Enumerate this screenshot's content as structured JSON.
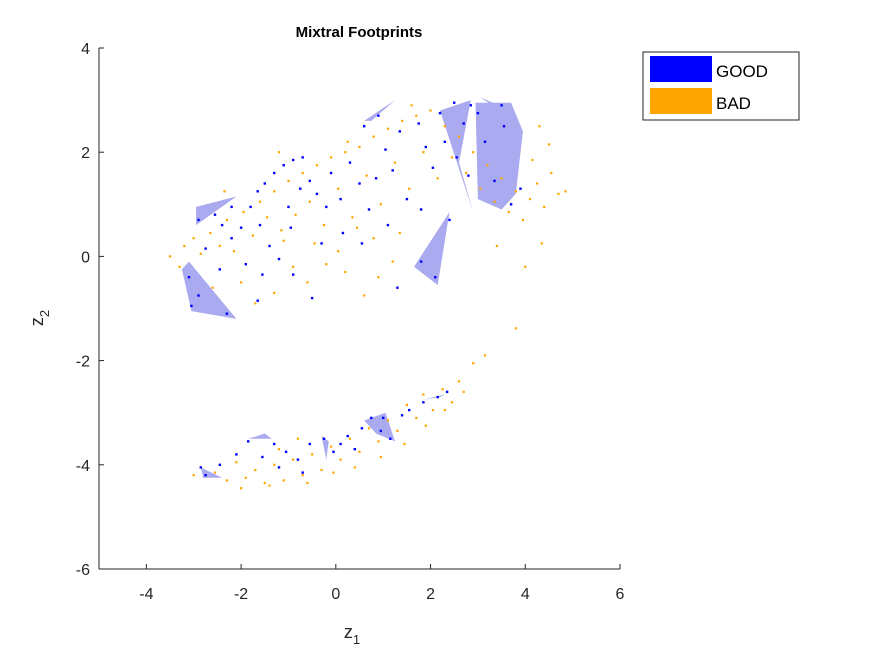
{
  "chart_data": {
    "type": "scatter",
    "title": "Mixtral Footprints",
    "xlabel": {
      "base": "z",
      "sub": "1"
    },
    "ylabel": {
      "base": "z",
      "sub": "2"
    },
    "xlim": [
      -5,
      6
    ],
    "ylim": [
      -6,
      4
    ],
    "xticks": [
      -4,
      -2,
      0,
      2,
      4,
      6
    ],
    "yticks": [
      -6,
      -4,
      -2,
      0,
      2,
      4
    ],
    "xtick_labels": [
      "-4",
      "-2",
      "0",
      "2",
      "4",
      "6"
    ],
    "ytick_labels": [
      "-6",
      "-4",
      "-2",
      "0",
      "2",
      "4"
    ],
    "grid": false,
    "legend_position": "top-right outside",
    "colors": {
      "GOOD": "#0000ff",
      "BAD": "#ffa500",
      "footprint": "#aaaaf0"
    },
    "legend": [
      {
        "label": "GOOD",
        "color": "#0000ff"
      },
      {
        "label": "BAD",
        "color": "#ffa500"
      }
    ],
    "footprints": [
      [
        [
          -2.95,
          0.6
        ],
        [
          -2.1,
          1.15
        ],
        [
          -2.95,
          0.95
        ]
      ],
      [
        [
          -3.25,
          -0.25
        ],
        [
          -3.1,
          -0.1
        ],
        [
          -2.1,
          -1.2
        ],
        [
          -3.05,
          -1.05
        ]
      ],
      [
        [
          0.6,
          2.6
        ],
        [
          1.25,
          3.0
        ],
        [
          0.75,
          2.6
        ]
      ],
      [
        [
          2.2,
          2.8
        ],
        [
          2.85,
          3.0
        ],
        [
          2.6,
          1.8
        ],
        [
          2.9,
          0.85
        ]
      ],
      [
        [
          1.65,
          -0.2
        ],
        [
          2.4,
          0.85
        ],
        [
          2.15,
          -0.55
        ]
      ],
      [
        [
          2.95,
          2.95
        ],
        [
          3.7,
          2.95
        ],
        [
          3.95,
          2.4
        ],
        [
          3.8,
          1.2
        ],
        [
          3.5,
          0.9
        ],
        [
          3.0,
          1.1
        ]
      ],
      [
        [
          3.05,
          3.05
        ],
        [
          3.45,
          2.9
        ],
        [
          3.9,
          2.55
        ]
      ],
      [
        [
          1.85,
          -2.75
        ],
        [
          2.3,
          -2.65
        ],
        [
          2.2,
          -2.7
        ]
      ],
      [
        [
          0.6,
          -3.15
        ],
        [
          1.05,
          -3.0
        ],
        [
          1.25,
          -3.55
        ],
        [
          0.85,
          -3.4
        ]
      ],
      [
        [
          -0.3,
          -3.45
        ],
        [
          -0.15,
          -3.55
        ],
        [
          -0.2,
          -3.9
        ]
      ],
      [
        [
          -1.85,
          -3.5
        ],
        [
          -1.5,
          -3.4
        ],
        [
          -1.35,
          -3.5
        ]
      ],
      [
        [
          -2.85,
          -4.05
        ],
        [
          -2.4,
          -4.25
        ],
        [
          -2.8,
          -4.25
        ]
      ]
    ],
    "series": [
      {
        "name": "GOOD",
        "points": [
          [
            -2.9,
            0.7
          ],
          [
            -2.55,
            0.8
          ],
          [
            -2.4,
            0.6
          ],
          [
            -2.2,
            0.35
          ],
          [
            -2.0,
            0.55
          ],
          [
            -1.8,
            0.95
          ],
          [
            -1.65,
            1.25
          ],
          [
            -1.5,
            1.4
          ],
          [
            -1.3,
            1.6
          ],
          [
            -1.1,
            1.75
          ],
          [
            -0.9,
            1.85
          ],
          [
            -0.7,
            1.9
          ],
          [
            -0.55,
            1.45
          ],
          [
            -0.4,
            1.2
          ],
          [
            -0.2,
            0.95
          ],
          [
            -0.1,
            1.6
          ],
          [
            0.1,
            1.1
          ],
          [
            0.3,
            1.8
          ],
          [
            0.5,
            1.4
          ],
          [
            0.7,
            0.9
          ],
          [
            0.85,
            1.5
          ],
          [
            1.05,
            2.05
          ],
          [
            1.2,
            1.65
          ],
          [
            1.35,
            2.4
          ],
          [
            1.5,
            1.1
          ],
          [
            1.75,
            2.55
          ],
          [
            1.9,
            2.1
          ],
          [
            2.05,
            1.7
          ],
          [
            2.3,
            2.2
          ],
          [
            2.55,
            1.9
          ],
          [
            2.7,
            2.55
          ],
          [
            2.8,
            1.55
          ],
          [
            3.0,
            2.75
          ],
          [
            3.15,
            2.2
          ],
          [
            3.35,
            1.45
          ],
          [
            3.55,
            2.5
          ],
          [
            3.7,
            1.0
          ],
          [
            3.9,
            1.3
          ],
          [
            -1.9,
            -0.15
          ],
          [
            -1.55,
            -0.35
          ],
          [
            -1.2,
            -0.05
          ],
          [
            -0.9,
            -0.35
          ],
          [
            -0.5,
            -0.8
          ],
          [
            -0.3,
            0.25
          ],
          [
            -1.4,
            0.2
          ],
          [
            -2.75,
            0.15
          ],
          [
            -2.45,
            -0.25
          ],
          [
            -3.1,
            -0.4
          ],
          [
            -2.9,
            -0.75
          ],
          [
            -3.05,
            -0.95
          ],
          [
            -2.3,
            -1.1
          ],
          [
            -1.65,
            -0.85
          ],
          [
            -0.95,
            0.55
          ],
          [
            0.15,
            0.45
          ],
          [
            0.55,
            0.25
          ],
          [
            1.1,
            0.6
          ],
          [
            1.8,
            0.9
          ],
          [
            -0.75,
            1.3
          ],
          [
            -1.0,
            0.95
          ],
          [
            -1.6,
            0.6
          ],
          [
            -2.2,
            0.95
          ],
          [
            0.6,
            2.5
          ],
          [
            0.9,
            2.7
          ],
          [
            2.2,
            2.75
          ],
          [
            2.5,
            2.95
          ],
          [
            2.85,
            2.9
          ],
          [
            3.5,
            2.9
          ],
          [
            2.4,
            0.7
          ],
          [
            2.1,
            -0.4
          ],
          [
            1.8,
            -0.1
          ],
          [
            1.3,
            -0.6
          ],
          [
            -1.3,
            -3.6
          ],
          [
            -1.05,
            -3.75
          ],
          [
            -0.8,
            -3.9
          ],
          [
            -0.55,
            -3.6
          ],
          [
            -0.25,
            -3.5
          ],
          [
            -0.05,
            -3.75
          ],
          [
            0.25,
            -3.45
          ],
          [
            0.55,
            -3.3
          ],
          [
            0.75,
            -3.1
          ],
          [
            0.95,
            -3.35
          ],
          [
            1.15,
            -3.5
          ],
          [
            1.4,
            -3.05
          ],
          [
            1.55,
            -2.95
          ],
          [
            1.85,
            -2.8
          ],
          [
            2.15,
            -2.7
          ],
          [
            2.35,
            -2.6
          ],
          [
            -1.85,
            -3.55
          ],
          [
            -2.1,
            -3.8
          ],
          [
            -2.45,
            -4.0
          ],
          [
            -2.75,
            -4.2
          ],
          [
            -2.85,
            -4.05
          ],
          [
            -1.55,
            -3.85
          ],
          [
            -1.2,
            -4.05
          ],
          [
            -0.7,
            -4.15
          ],
          [
            0.1,
            -3.6
          ],
          [
            0.4,
            -3.7
          ],
          [
            1.0,
            -3.1
          ]
        ]
      },
      {
        "name": "BAD",
        "points": [
          [
            -3.5,
            0.0
          ],
          [
            -3.3,
            -0.2
          ],
          [
            -3.2,
            0.2
          ],
          [
            -3.0,
            0.35
          ],
          [
            -2.85,
            0.05
          ],
          [
            -2.65,
            0.45
          ],
          [
            -2.45,
            0.2
          ],
          [
            -2.3,
            0.7
          ],
          [
            -2.15,
            0.1
          ],
          [
            -1.95,
            0.85
          ],
          [
            -1.75,
            0.4
          ],
          [
            -1.6,
            1.05
          ],
          [
            -1.45,
            0.75
          ],
          [
            -1.3,
            1.25
          ],
          [
            -1.15,
            0.5
          ],
          [
            -1.0,
            1.45
          ],
          [
            -0.85,
            0.8
          ],
          [
            -0.7,
            1.6
          ],
          [
            -0.55,
            1.05
          ],
          [
            -0.4,
            1.75
          ],
          [
            -0.25,
            0.6
          ],
          [
            -0.1,
            1.9
          ],
          [
            0.05,
            1.3
          ],
          [
            0.2,
            2.0
          ],
          [
            0.35,
            0.75
          ],
          [
            0.5,
            2.1
          ],
          [
            0.65,
            1.55
          ],
          [
            0.8,
            2.3
          ],
          [
            0.95,
            1.0
          ],
          [
            1.1,
            2.45
          ],
          [
            1.25,
            1.8
          ],
          [
            1.4,
            2.6
          ],
          [
            1.55,
            1.3
          ],
          [
            1.7,
            2.7
          ],
          [
            1.85,
            2.0
          ],
          [
            2.0,
            2.8
          ],
          [
            2.15,
            1.5
          ],
          [
            2.3,
            2.5
          ],
          [
            2.45,
            1.9
          ],
          [
            2.6,
            2.3
          ],
          [
            2.75,
            1.6
          ],
          [
            2.9,
            2.0
          ],
          [
            3.05,
            1.3
          ],
          [
            3.2,
            1.75
          ],
          [
            3.35,
            1.05
          ],
          [
            3.5,
            1.5
          ],
          [
            3.65,
            0.85
          ],
          [
            3.8,
            1.25
          ],
          [
            3.95,
            0.7
          ],
          [
            4.1,
            1.1
          ],
          [
            4.25,
            1.4
          ],
          [
            4.4,
            0.95
          ],
          [
            4.55,
            1.6
          ],
          [
            4.7,
            1.2
          ],
          [
            4.85,
            1.25
          ],
          [
            4.3,
            2.5
          ],
          [
            4.5,
            2.15
          ],
          [
            4.15,
            1.85
          ],
          [
            4.35,
            0.25
          ],
          [
            3.4,
            0.2
          ],
          [
            -2.0,
            -0.5
          ],
          [
            -1.7,
            -0.9
          ],
          [
            -1.3,
            -0.7
          ],
          [
            -0.9,
            -0.2
          ],
          [
            -0.6,
            -0.5
          ],
          [
            -0.2,
            -0.15
          ],
          [
            0.2,
            -0.3
          ],
          [
            0.6,
            -0.75
          ],
          [
            0.9,
            -0.4
          ],
          [
            1.2,
            -0.1
          ],
          [
            -1.1,
            0.3
          ],
          [
            -0.45,
            0.25
          ],
          [
            0.05,
            0.1
          ],
          [
            0.45,
            0.55
          ],
          [
            0.8,
            0.35
          ],
          [
            1.35,
            0.45
          ],
          [
            -2.6,
            -0.6
          ],
          [
            -2.35,
            1.25
          ],
          [
            -1.2,
            2.0
          ],
          [
            0.25,
            2.2
          ],
          [
            1.6,
            2.9
          ],
          [
            4.0,
            -0.2
          ],
          [
            3.8,
            -1.38
          ],
          [
            3.15,
            -1.9
          ],
          [
            2.9,
            -2.05
          ],
          [
            2.6,
            -2.4
          ],
          [
            2.45,
            -2.8
          ],
          [
            2.25,
            -2.55
          ],
          [
            2.05,
            -2.95
          ],
          [
            1.85,
            -2.65
          ],
          [
            1.7,
            -3.1
          ],
          [
            1.5,
            -2.85
          ],
          [
            1.3,
            -3.35
          ],
          [
            1.1,
            -3.15
          ],
          [
            0.9,
            -3.55
          ],
          [
            0.7,
            -3.3
          ],
          [
            0.5,
            -3.75
          ],
          [
            0.3,
            -3.5
          ],
          [
            0.1,
            -3.9
          ],
          [
            -0.1,
            -3.65
          ],
          [
            -0.3,
            -4.1
          ],
          [
            -0.5,
            -3.8
          ],
          [
            -0.7,
            -4.2
          ],
          [
            -0.9,
            -3.9
          ],
          [
            -1.1,
            -4.3
          ],
          [
            -1.3,
            -4.0
          ],
          [
            -1.5,
            -4.35
          ],
          [
            -1.7,
            -4.1
          ],
          [
            -1.9,
            -4.25
          ],
          [
            -2.1,
            -3.95
          ],
          [
            -2.3,
            -4.3
          ],
          [
            -2.55,
            -4.15
          ],
          [
            -3.0,
            -4.2
          ],
          [
            -2.0,
            -4.45
          ],
          [
            -1.4,
            -4.4
          ],
          [
            2.7,
            -2.6
          ],
          [
            2.3,
            -2.95
          ],
          [
            1.9,
            -3.25
          ],
          [
            1.45,
            -3.6
          ],
          [
            0.95,
            -3.85
          ],
          [
            0.4,
            -4.05
          ],
          [
            -0.05,
            -4.15
          ],
          [
            -0.6,
            -4.35
          ],
          [
            -1.2,
            -3.7
          ],
          [
            -0.8,
            -3.5
          ]
        ]
      }
    ]
  }
}
